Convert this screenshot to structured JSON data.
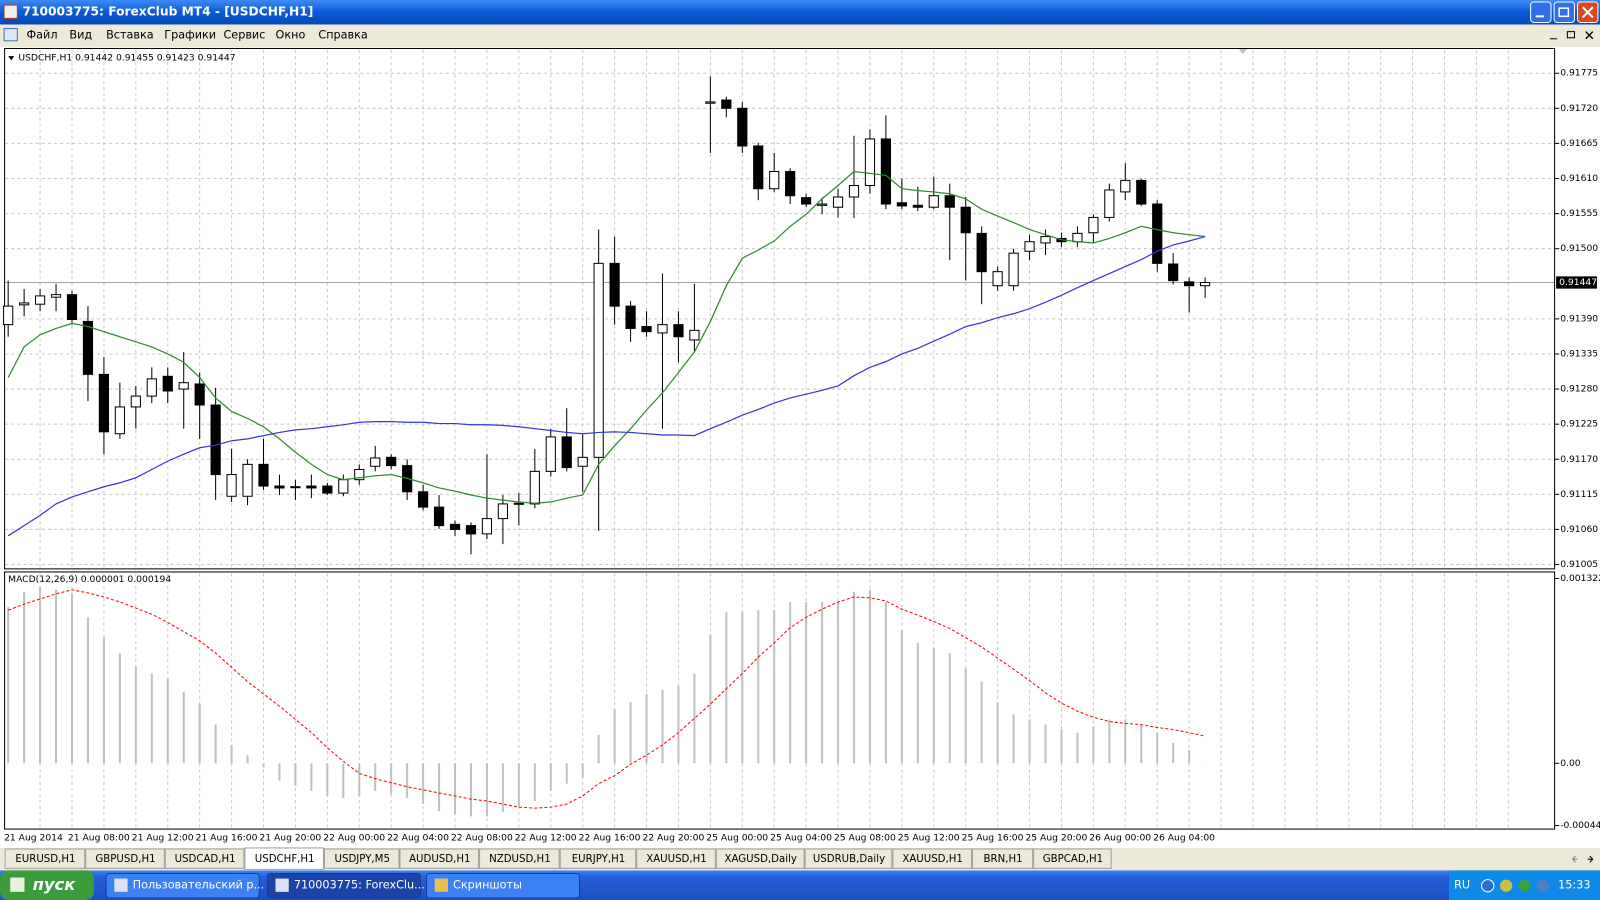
{
  "window": {
    "title": "710003775: ForexClub MT4 - [USDCHF,H1]"
  },
  "menu": [
    "Файл",
    "Вид",
    "Вставка",
    "Графики",
    "Сервис",
    "Окно",
    "Справка"
  ],
  "tabs": [
    "EURUSD,H1",
    "GBPUSD,H1",
    "USDCAD,H1",
    "USDCHF,H1",
    "USDJPY,M5",
    "AUDUSD,H1",
    "NZDUSD,H1",
    "EURJPY,H1",
    "XAUUSD,H1",
    "XAGUSD,Daily",
    "USDRUB,Daily",
    "XAUUSD,H1",
    "BRN,H1",
    "GBPCAD,H1"
  ],
  "active_tab": 3,
  "taskbar": {
    "start": "пуск",
    "buttons": [
      "Пользовательский р...",
      "710003775: ForexClu...",
      "Скриншоты"
    ],
    "active_button": 1,
    "language": "RU",
    "clock": "15:33"
  },
  "chart_data": [
    {
      "type": "candlestick",
      "title": "USDCHF,H1  0.91442 0.91455 0.91423 0.91447",
      "categories": [
        "21 Aug 2014",
        null,
        null,
        null,
        "21 Aug 08:00",
        null,
        null,
        null,
        "21 Aug 12:00",
        null,
        null,
        null,
        "21 Aug 16:00",
        null,
        null,
        null,
        "21 Aug 20:00",
        null,
        null,
        null,
        "22 Aug 00:00",
        null,
        null,
        null,
        "22 Aug 04:00",
        null,
        null,
        null,
        "22 Aug 08:00",
        null,
        null,
        null,
        "22 Aug 12:00",
        null,
        null,
        null,
        "22 Aug 16:00",
        null,
        null,
        null,
        "22 Aug 20:00",
        null,
        null,
        null,
        "25 Aug 00:00",
        null,
        null,
        null,
        "25 Aug 04:00",
        null,
        null,
        null,
        "25 Aug 08:00",
        null,
        null,
        null,
        "25 Aug 12:00",
        null,
        null,
        null,
        "25 Aug 16:00",
        null,
        null,
        null,
        "25 Aug 20:00",
        null,
        null,
        null,
        "26 Aug 00:00",
        null,
        null,
        null,
        "26 Aug 04:00",
        null,
        null,
        null
      ],
      "open": [
        0.91381,
        0.91412,
        0.91413,
        0.91424,
        0.91428,
        0.91386,
        0.91303,
        0.9121,
        0.91252,
        0.91269,
        0.913,
        0.9128,
        0.91288,
        0.91255,
        0.91112,
        0.91112,
        0.91162,
        0.91128,
        0.91127,
        0.91128,
        0.91128,
        0.91117,
        0.91138,
        0.91159,
        0.91173,
        0.9116,
        0.91119,
        0.91095,
        0.91068,
        0.91066,
        0.91053,
        0.91077,
        0.91101,
        0.911,
        0.91151,
        0.91205,
        0.91159,
        0.91173,
        0.91477,
        0.9141,
        0.91378,
        0.91368,
        0.91381,
        0.91357,
        0.91728,
        0.91733,
        0.9172,
        0.91661,
        0.91594,
        0.91621,
        0.9158,
        0.91568,
        0.91565,
        0.91581,
        0.91599,
        0.91672,
        0.91572,
        0.91568,
        0.91565,
        0.91583,
        0.91565,
        0.91524,
        0.91442,
        0.91442,
        0.91496,
        0.91509,
        0.91516,
        0.91511,
        0.91525,
        0.91549,
        0.91589,
        0.91607,
        0.9157,
        0.91476,
        0.91448,
        0.91442
      ],
      "high": [
        0.9145,
        0.91437,
        0.91437,
        0.91445,
        0.91434,
        0.9141,
        0.9133,
        0.9129,
        0.91285,
        0.91314,
        0.91314,
        0.91338,
        0.91306,
        0.91282,
        0.91186,
        0.9117,
        0.91202,
        0.91146,
        0.91138,
        0.91146,
        0.91133,
        0.91146,
        0.91162,
        0.91191,
        0.91178,
        0.9117,
        0.9113,
        0.91114,
        0.91074,
        0.91071,
        0.91178,
        0.91114,
        0.91117,
        0.91186,
        0.91218,
        0.9125,
        0.9121,
        0.9153,
        0.91519,
        0.91418,
        0.91402,
        0.91461,
        0.91402,
        0.91445,
        0.9177,
        0.91738,
        0.9173,
        0.91666,
        0.9165,
        0.91626,
        0.91586,
        0.9158,
        0.91594,
        0.91677,
        0.91687,
        0.91709,
        0.9161,
        0.91597,
        0.91613,
        0.91602,
        0.91581,
        0.91535,
        0.91472,
        0.915,
        0.91522,
        0.9153,
        0.91525,
        0.91535,
        0.91554,
        0.91602,
        0.91634,
        0.9161,
        0.91576,
        0.91493,
        0.91455,
        0.91455
      ],
      "low": [
        0.91362,
        0.91394,
        0.91402,
        0.91402,
        0.91381,
        0.91261,
        0.91178,
        0.91202,
        0.91218,
        0.91258,
        0.91258,
        0.91218,
        0.91202,
        0.91106,
        0.91103,
        0.91098,
        0.91122,
        0.91114,
        0.91106,
        0.91109,
        0.91114,
        0.91112,
        0.9113,
        0.91151,
        0.91154,
        0.91106,
        0.9109,
        0.91061,
        0.9105,
        0.91021,
        0.91045,
        0.91037,
        0.91066,
        0.91093,
        0.91143,
        0.91151,
        0.91119,
        0.91058,
        0.91381,
        0.91354,
        0.91362,
        0.91218,
        0.91322,
        0.91338,
        0.9165,
        0.91706,
        0.9165,
        0.91576,
        0.91589,
        0.9157,
        0.91565,
        0.91554,
        0.91549,
        0.91548,
        0.91586,
        0.91562,
        0.91562,
        0.91559,
        0.91562,
        0.91482,
        0.9145,
        0.91413,
        0.91434,
        0.91434,
        0.91482,
        0.9149,
        0.91503,
        0.91503,
        0.91509,
        0.91543,
        0.91576,
        0.91567,
        0.91464,
        0.91444,
        0.914,
        0.91423
      ],
      "close": [
        0.9141,
        0.91415,
        0.91426,
        0.91428,
        0.91389,
        0.91303,
        0.91213,
        0.91252,
        0.91269,
        0.91296,
        0.91277,
        0.9129,
        0.91255,
        0.91146,
        0.91146,
        0.91162,
        0.91128,
        0.91125,
        0.91127,
        0.91125,
        0.91117,
        0.91138,
        0.91154,
        0.91172,
        0.9116,
        0.91119,
        0.91095,
        0.91066,
        0.9106,
        0.91053,
        0.91077,
        0.911,
        0.91101,
        0.91151,
        0.91205,
        0.91157,
        0.91173,
        0.91477,
        0.9141,
        0.91375,
        0.9137,
        0.91381,
        0.91362,
        0.91372,
        0.9173,
        0.9172,
        0.91661,
        0.91594,
        0.91621,
        0.91583,
        0.9157,
        0.9157,
        0.91581,
        0.91599,
        0.91672,
        0.9157,
        0.91567,
        0.91565,
        0.91583,
        0.91565,
        0.91525,
        0.91464,
        0.91464,
        0.91493,
        0.91511,
        0.91519,
        0.91511,
        0.91524,
        0.91549,
        0.91592,
        0.91607,
        0.9157,
        0.91477,
        0.9145,
        0.91442,
        0.91447
      ],
      "up_color": "#ffffff",
      "down_color": "#000000",
      "lines": [
        {
          "color": "#2e8b2e",
          "values": [
            0.91298,
            0.91346,
            0.91365,
            0.91375,
            0.91383,
            0.91378,
            0.9137,
            0.91362,
            0.91354,
            0.91346,
            0.91335,
            0.91322,
            0.91298,
            0.91266,
            0.91245,
            0.91234,
            0.91221,
            0.91202,
            0.91181,
            0.91162,
            0.91146,
            0.91138,
            0.91141,
            0.91144,
            0.91146,
            0.9114,
            0.91133,
            0.91125,
            0.9112,
            0.91114,
            0.91109,
            0.91106,
            0.91103,
            0.91101,
            0.91103,
            0.91109,
            0.91114,
            0.91162,
            0.91191,
            0.91218,
            0.91247,
            0.91274,
            0.91306,
            0.91338,
            0.91386,
            0.91442,
            0.91485,
            0.91498,
            0.91512,
            0.91535,
            0.91554,
            0.91578,
            0.91599,
            0.91621,
            0.91618,
            0.91615,
            0.91594,
            0.91591,
            0.91589,
            0.91586,
            0.91578,
            0.91562,
            0.91551,
            0.91541,
            0.9153,
            0.91522,
            0.91514,
            0.91511,
            0.91509,
            0.91516,
            0.91525,
            0.91535,
            0.9153,
            0.91525,
            0.91522,
            0.91519
          ]
        },
        {
          "color": "#3434d8",
          "values": [
            0.9105,
            0.91066,
            0.91082,
            0.911,
            0.91111,
            0.91119,
            0.91127,
            0.91133,
            0.91141,
            0.91154,
            0.91167,
            0.91178,
            0.91188,
            0.91192,
            0.91199,
            0.91202,
            0.91207,
            0.91212,
            0.91216,
            0.91218,
            0.91221,
            0.91224,
            0.91228,
            0.91229,
            0.91229,
            0.91228,
            0.91228,
            0.91226,
            0.91226,
            0.91224,
            0.91224,
            0.91223,
            0.91221,
            0.91218,
            0.91215,
            0.91212,
            0.9121,
            0.91212,
            0.91213,
            0.91212,
            0.9121,
            0.91208,
            0.91208,
            0.91207,
            0.91218,
            0.91228,
            0.91239,
            0.91248,
            0.91258,
            0.91266,
            0.91272,
            0.91278,
            0.91285,
            0.91301,
            0.91314,
            0.91323,
            0.91335,
            0.91344,
            0.91355,
            0.91366,
            0.91378,
            0.91384,
            0.91392,
            0.91398,
            0.91406,
            0.91416,
            0.91427,
            0.91439,
            0.9145,
            0.91461,
            0.91472,
            0.91483,
            0.91496,
            0.91506,
            0.91512,
            0.91519
          ]
        }
      ],
      "current_price": 0.91447,
      "ylim": [
        0.90999,
        0.91813
      ],
      "yticks": [
        0.91775,
        {
          "value": 0.9172,
          "label": "0.91720"
        },
        0.91665,
        {
          "value": 0.9161,
          "label": "0.91610"
        },
        0.91555,
        {
          "value": 0.915,
          "label": "0.91500"
        },
        {
          "value": 0.9139,
          "label": "0.91390"
        },
        0.91335,
        {
          "value": 0.9128,
          "label": "0.91280"
        },
        0.91225,
        {
          "value": 0.9117,
          "label": "0.91170"
        },
        0.91115,
        {
          "value": 0.9106,
          "label": "0.91060"
        },
        0.91005
      ],
      "grid": true
    },
    {
      "type": "macd",
      "title": "MACD(12,26,9) 0.000001 0.000194",
      "color": "#c0c0c0",
      "values": [
        0.001117,
        0.001226,
        0.001263,
        0.001241,
        0.001212,
        0.001044,
        0.000898,
        0.000788,
        0.000694,
        0.000642,
        0.000606,
        0.000511,
        0.000423,
        0.000277,
        0.000131,
        5.8e-05,
        -2.9e-05,
        -0.000124,
        -0.000161,
        -0.000197,
        -0.000234,
        -0.000248,
        -0.000234,
        -0.000197,
        -0.000219,
        -0.000248,
        -0.000292,
        -0.000343,
        -0.000365,
        -0.00038,
        -0.00038,
        -0.00035,
        -0.000307,
        -0.00027,
        -0.000197,
        -0.000146,
        -0.000102,
        0.000204,
        0.000387,
        0.000438,
        0.000496,
        0.000526,
        0.000555,
        0.000642,
        0.00092,
        0.00108,
        0.00108,
        0.001095,
        0.001095,
        0.001153,
        0.001153,
        0.001153,
        0.001153,
        0.001226,
        0.001241,
        0.001153,
        0.000949,
        0.000861,
        0.000825,
        0.000788,
        0.000679,
        0.000584,
        0.000438,
        0.00035,
        0.000314,
        0.000277,
        0.000241,
        0.000219,
        0.000263,
        0.000314,
        0.000314,
        0.000277,
        0.000219,
        0.000146,
        9.5e-05,
        1e-06
      ],
      "signal": {
        "color": "#ff0000",
        "values": [
          0.001095,
          0.001139,
          0.001175,
          0.001212,
          0.001241,
          0.001219,
          0.00119,
          0.001153,
          0.00111,
          0.001066,
          0.001007,
          0.000942,
          0.000876,
          0.000788,
          0.000686,
          0.000584,
          0.000496,
          0.000409,
          0.000314,
          0.000219,
          0.00011,
          1.5e-05,
          -7.3e-05,
          -0.00011,
          -0.000139,
          -0.000168,
          -0.00019,
          -0.000212,
          -0.000234,
          -0.000256,
          -0.00027,
          -0.000292,
          -0.000314,
          -0.000321,
          -0.000314,
          -0.000292,
          -0.000234,
          -0.000146,
          -8.8e-05,
          -7e-06,
          5.8e-05,
          0.000131,
          0.000219,
          0.000321,
          0.000423,
          0.000533,
          0.000642,
          0.000759,
          0.000861,
          0.000971,
          0.001044,
          0.001102,
          0.001153,
          0.00119,
          0.001183,
          0.001161,
          0.001102,
          0.001059,
          0.001015,
          0.000964,
          0.000898,
          0.000832,
          0.000752,
          0.000672,
          0.000591,
          0.000504,
          0.000431,
          0.000372,
          0.000329,
          0.000299,
          0.000285,
          0.000277,
          0.000256,
          0.000241,
          0.000219,
          0.000194
        ]
      },
      "ylim": [
        -0.000467,
        0.001365
      ],
      "yticks": [
        0.001322,
        {
          "value": 0,
          "label": "0.00"
        },
        -0.000445
      ]
    }
  ]
}
